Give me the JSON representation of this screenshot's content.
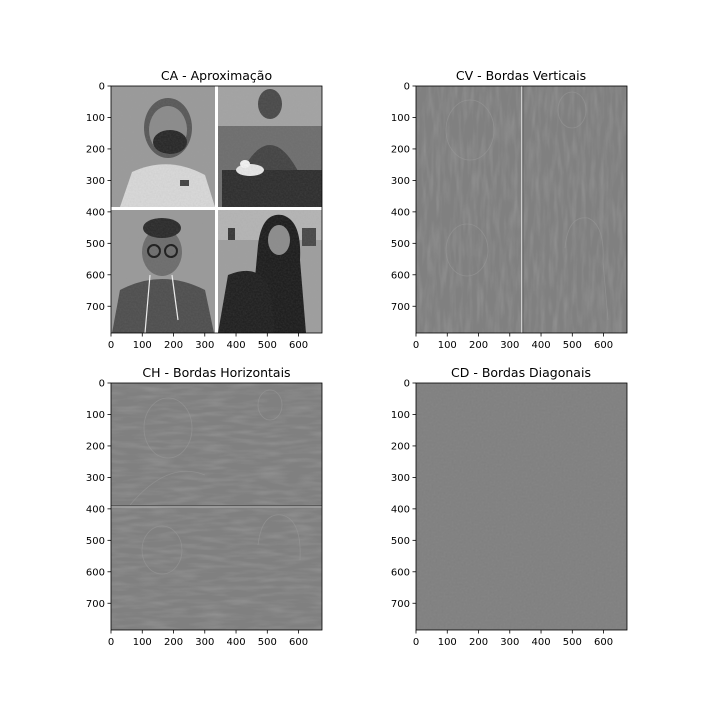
{
  "chart_data": [
    {
      "type": "heatmap",
      "title": "CA - Aproximação",
      "image_kind": "photo-collage",
      "image_size": [
        675,
        785
      ],
      "xlim": [
        0,
        675
      ],
      "ylim": [
        785,
        0
      ],
      "x_ticks": [
        0,
        100,
        200,
        300,
        400,
        500,
        600
      ],
      "y_ticks": [
        0,
        100,
        200,
        300,
        400,
        500,
        600,
        700
      ],
      "colormap": "gray",
      "grid": false
    },
    {
      "type": "heatmap",
      "title": "CV - Bordas Verticais",
      "image_kind": "vertical-edges",
      "image_size": [
        675,
        785
      ],
      "xlim": [
        0,
        675
      ],
      "ylim": [
        785,
        0
      ],
      "x_ticks": [
        0,
        100,
        200,
        300,
        400,
        500,
        600
      ],
      "y_ticks": [
        0,
        100,
        200,
        300,
        400,
        500,
        600,
        700
      ],
      "colormap": "gray",
      "grid": false
    },
    {
      "type": "heatmap",
      "title": "CH - Bordas Horizontais",
      "image_kind": "horizontal-edges",
      "image_size": [
        675,
        785
      ],
      "xlim": [
        0,
        675
      ],
      "ylim": [
        785,
        0
      ],
      "x_ticks": [
        0,
        100,
        200,
        300,
        400,
        500,
        600
      ],
      "y_ticks": [
        0,
        100,
        200,
        300,
        400,
        500,
        600,
        700
      ],
      "colormap": "gray",
      "grid": false
    },
    {
      "type": "heatmap",
      "title": "CD - Bordas Diagonais",
      "image_kind": "diagonal-edges",
      "image_size": [
        675,
        785
      ],
      "xlim": [
        0,
        675
      ],
      "ylim": [
        785,
        0
      ],
      "x_ticks": [
        0,
        100,
        200,
        300,
        400,
        500,
        600
      ],
      "y_ticks": [
        0,
        100,
        200,
        300,
        400,
        500,
        600,
        700
      ],
      "colormap": "gray",
      "grid": false
    }
  ]
}
